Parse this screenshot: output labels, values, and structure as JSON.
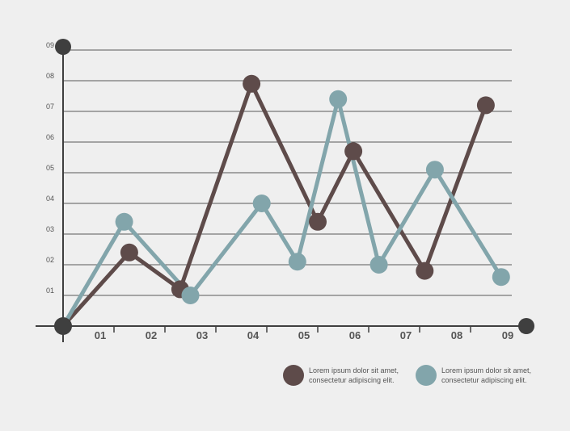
{
  "chart_data": {
    "type": "line",
    "title": "",
    "xlabel": "",
    "ylabel": "",
    "x_ticks": [
      "01",
      "02",
      "03",
      "04",
      "05",
      "06",
      "07",
      "08",
      "09"
    ],
    "y_ticks": [
      "01",
      "02",
      "03",
      "04",
      "05",
      "06",
      "07",
      "08",
      "09"
    ],
    "xlim": [
      0,
      9
    ],
    "ylim": [
      0,
      9
    ],
    "grid": "horizontal",
    "legend_position": "bottom-right",
    "series": [
      {
        "color": "#5e4b4a",
        "points": [
          [
            0,
            0
          ],
          [
            1.3,
            2.4
          ],
          [
            2.3,
            1.2
          ],
          [
            3.7,
            7.9
          ],
          [
            5.0,
            3.4
          ],
          [
            5.7,
            5.7
          ],
          [
            7.1,
            1.8
          ],
          [
            8.3,
            7.2
          ]
        ]
      },
      {
        "color": "#82a5ab",
        "points": [
          [
            0,
            0
          ],
          [
            1.2,
            3.4
          ],
          [
            2.5,
            1.0
          ],
          [
            3.9,
            4.0
          ],
          [
            4.6,
            2.1
          ],
          [
            5.4,
            7.4
          ],
          [
            6.2,
            2.0
          ],
          [
            7.3,
            5.1
          ],
          [
            8.6,
            1.6
          ]
        ]
      }
    ],
    "legend": [
      {
        "line1": "Lorem ipsum dolor sit amet,",
        "line2": "consectetur adipiscing elit.",
        "color": "#5e4b4a"
      },
      {
        "line1": "Lorem ipsum dolor sit amet,",
        "line2": "consectetur adipiscing elit.",
        "color": "#82a5ab"
      }
    ]
  },
  "colors": {
    "axis": "#3f3f3f",
    "grid": "#5a5a5a",
    "tick_label": "#555555",
    "background": "#efefef"
  }
}
